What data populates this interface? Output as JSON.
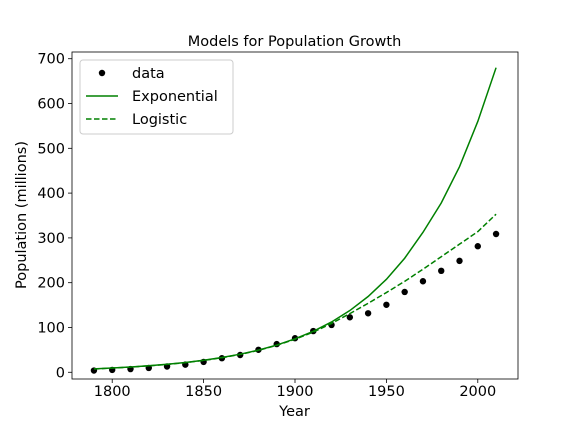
{
  "chart_data": {
    "type": "line",
    "title": "Models for Population Growth",
    "xlabel": "Year",
    "ylabel": "Population (millions)",
    "xlim": [
      1778,
      2022
    ],
    "ylim": [
      -15,
      715
    ],
    "xticks": [
      1800,
      1850,
      1900,
      1950,
      2000
    ],
    "yticks": [
      0,
      100,
      200,
      300,
      400,
      500,
      600,
      700
    ],
    "grid": false,
    "legend_position": "top-left",
    "series": [
      {
        "name": "data",
        "style": "scatter",
        "color": "#000000",
        "x": [
          1790,
          1800,
          1810,
          1820,
          1830,
          1840,
          1850,
          1860,
          1870,
          1880,
          1890,
          1900,
          1910,
          1920,
          1930,
          1940,
          1950,
          1960,
          1970,
          1980,
          1990,
          2000,
          2010
        ],
        "y": [
          3.9,
          5.3,
          7.2,
          9.6,
          12.9,
          17.1,
          23.2,
          31.4,
          38.6,
          50.2,
          62.9,
          76.0,
          92.0,
          105.7,
          122.8,
          131.7,
          150.7,
          179.3,
          203.2,
          226.5,
          248.7,
          281.4,
          308.7
        ]
      },
      {
        "name": "Exponential",
        "style": "solid",
        "color": "#008000",
        "x": [
          1790,
          1800,
          1810,
          1820,
          1830,
          1840,
          1850,
          1860,
          1870,
          1880,
          1890,
          1900,
          1910,
          1920,
          1930,
          1940,
          1950,
          1960,
          1970,
          1980,
          1990,
          2000,
          2010
        ],
        "y": [
          7.5,
          9.5,
          11.8,
          14.5,
          17.8,
          21.8,
          26.8,
          32.9,
          40.4,
          49.5,
          60.8,
          74.6,
          91.5,
          112.3,
          137.8,
          169.1,
          207.5,
          254.6,
          312.4,
          378.0,
          459.0,
          560.0,
          680.0
        ]
      },
      {
        "name": "Logistic",
        "style": "dashed",
        "color": "#008000",
        "x": [
          1790,
          1800,
          1810,
          1820,
          1830,
          1840,
          1850,
          1860,
          1870,
          1880,
          1890,
          1900,
          1910,
          1920,
          1930,
          1940,
          1950,
          1960,
          1970,
          1980,
          1990,
          2000,
          2010
        ],
        "y": [
          7.4,
          9.4,
          11.7,
          14.4,
          17.6,
          21.6,
          26.5,
          32.5,
          39.9,
          49.0,
          60.2,
          73.7,
          89.8,
          109.0,
          131.0,
          154.0,
          178.0,
          203.0,
          230.0,
          258.0,
          286.0,
          314.0,
          353.0
        ]
      }
    ]
  }
}
